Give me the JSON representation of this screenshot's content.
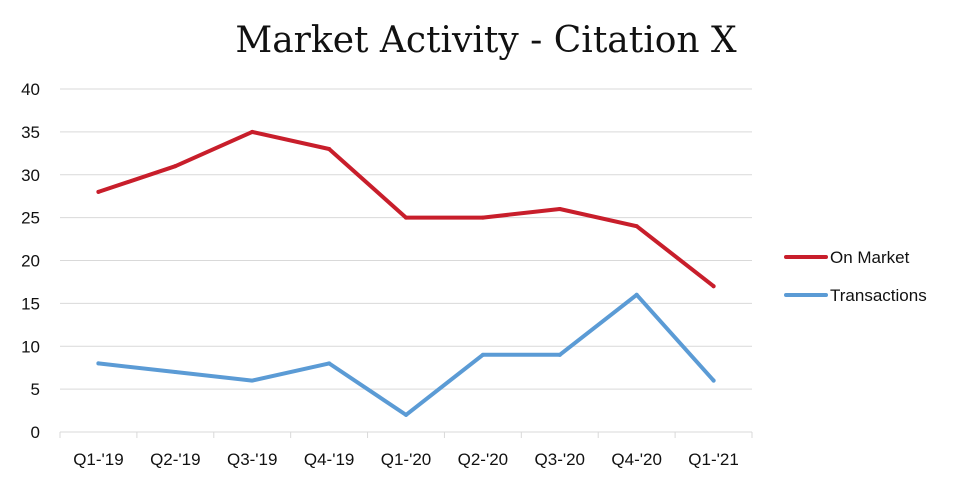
{
  "chart_data": {
    "type": "line",
    "title": "Market Activity - Citation X",
    "xlabel": "",
    "ylabel": "",
    "categories": [
      "Q1-'19",
      "Q2-'19",
      "Q3-'19",
      "Q4-'19",
      "Q1-'20",
      "Q2-'20",
      "Q3-'20",
      "Q4-'20",
      "Q1-'21"
    ],
    "y_ticks": [
      "0",
      "5",
      "10",
      "15",
      "20",
      "25",
      "30",
      "35",
      "40"
    ],
    "ylim": [
      0,
      40
    ],
    "grid": "horizontal",
    "legend_position": "right",
    "series": [
      {
        "name": "On Market",
        "color": "#c81e2b",
        "values": [
          28,
          31,
          35,
          33,
          25,
          25,
          26,
          24,
          17
        ]
      },
      {
        "name": "Transactions",
        "color": "#5b9bd5",
        "values": [
          8,
          7,
          6,
          8,
          2,
          9,
          9,
          16,
          6
        ]
      }
    ]
  }
}
